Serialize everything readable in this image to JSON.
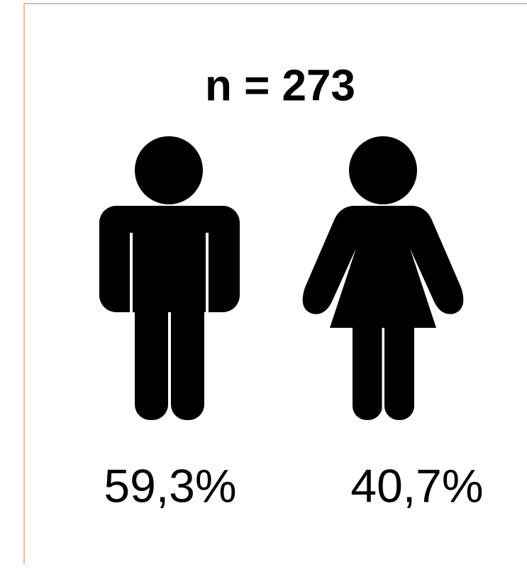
{
  "title": "n = 273",
  "figures": [
    {
      "label": "59,3%"
    },
    {
      "label": "40,7%"
    }
  ]
}
